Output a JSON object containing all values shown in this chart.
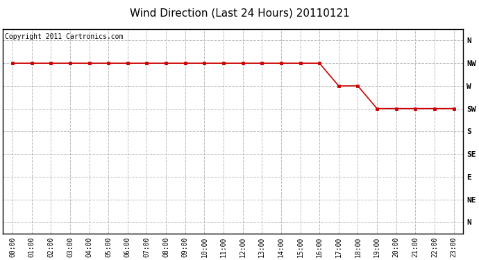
{
  "title": "Wind Direction (Last 24 Hours) 20110121",
  "copyright_text": "Copyright 2011 Cartronics.com",
  "ytick_labels": [
    "N",
    "NW",
    "W",
    "SW",
    "S",
    "SE",
    "E",
    "NE",
    "N"
  ],
  "ytick_values": [
    8,
    7,
    6,
    5,
    4,
    3,
    2,
    1,
    0
  ],
  "xtick_labels": [
    "00:00",
    "01:00",
    "02:00",
    "03:00",
    "04:00",
    "05:00",
    "06:00",
    "07:00",
    "08:00",
    "09:00",
    "10:00",
    "11:00",
    "12:00",
    "13:00",
    "14:00",
    "15:00",
    "16:00",
    "17:00",
    "18:00",
    "19:00",
    "20:00",
    "21:00",
    "22:00",
    "23:00"
  ],
  "x_values": [
    0,
    1,
    2,
    3,
    4,
    5,
    6,
    7,
    8,
    9,
    10,
    11,
    12,
    13,
    14,
    15,
    16,
    17,
    18,
    19,
    20,
    21,
    22,
    23
  ],
  "y_values": [
    7,
    7,
    7,
    7,
    7,
    7,
    7,
    7,
    7,
    7,
    7,
    7,
    7,
    7,
    7,
    7,
    7,
    6,
    6,
    5,
    5,
    5,
    5,
    5
  ],
  "line_color": "#cc0000",
  "marker_color": "#cc0000",
  "marker": "s",
  "marker_size": 3,
  "line_width": 1.2,
  "grid_color": "#bbbbbb",
  "grid_style": "--",
  "bg_color": "#ffffff",
  "plot_bg_color": "#ffffff",
  "title_fontsize": 11,
  "tick_fontsize": 7,
  "copyright_fontsize": 7,
  "ylabel_fontsize": 8
}
